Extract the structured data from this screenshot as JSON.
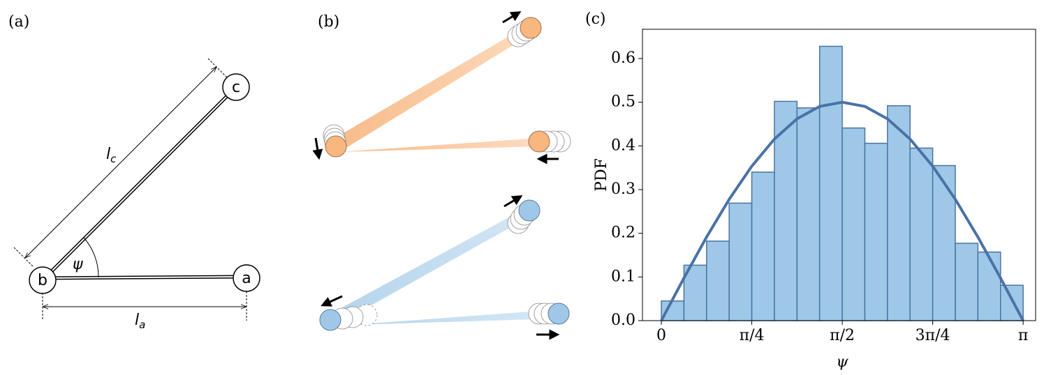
{
  "panel_labels": [
    "(a)",
    "(b)",
    "(c)"
  ],
  "diagram": {
    "nodes": [
      "c",
      "b",
      "a"
    ],
    "labels": [
      "l",
      "c",
      "ψ",
      "l",
      "a"
    ]
  },
  "chart_data": {
    "type": "histogram",
    "bins": [
      0,
      0.19635,
      0.392699,
      0.589049,
      0.785398,
      0.981748,
      1.178097,
      1.374447,
      1.570796,
      1.767146,
      1.963495,
      2.159845,
      2.356194,
      2.552544,
      2.748894,
      2.945243,
      3.141593
    ],
    "values": [
      0.045,
      0.127,
      0.182,
      0.269,
      0.34,
      0.502,
      0.487,
      0.628,
      0.441,
      0.406,
      0.492,
      0.395,
      0.355,
      0.177,
      0.157,
      0.081
    ],
    "color": "#9fc8e8",
    "edgecolor": "#4a73a0",
    "curve": {
      "color": "#4a72a6",
      "x": [
        0,
        0.19635,
        0.392699,
        0.589049,
        0.785398,
        0.981748,
        1.178097,
        1.374447,
        1.570796,
        1.767146,
        1.963495,
        2.159845,
        2.356194,
        2.552544,
        2.748894,
        2.945243,
        3.141593
      ],
      "values": [
        0,
        0.09755,
        0.19134,
        0.27779,
        0.35355,
        0.41573,
        0.46194,
        0.49039,
        0.5,
        0.49039,
        0.46194,
        0.41573,
        0.35355,
        0.27779,
        0.19134,
        0.09755,
        0
      ]
    },
    "xlabel": "ψ",
    "ylabel": "PDF",
    "xlim": [
      -0.164,
      3.25
    ],
    "ylim": [
      0,
      0.667
    ],
    "xticks": [
      0,
      {
        "value": 0.785398,
        "label": "π/4"
      },
      {
        "value": 1.570796,
        "label": "π/2"
      },
      {
        "value": 2.356194,
        "label": "3π/4"
      },
      {
        "value": 3.141593,
        "label": "π"
      }
    ],
    "yticks": [
      {
        "value": 0,
        "label": "0.0"
      },
      0.1,
      0.2,
      0.3,
      0.4,
      0.5,
      0.6
    ]
  }
}
